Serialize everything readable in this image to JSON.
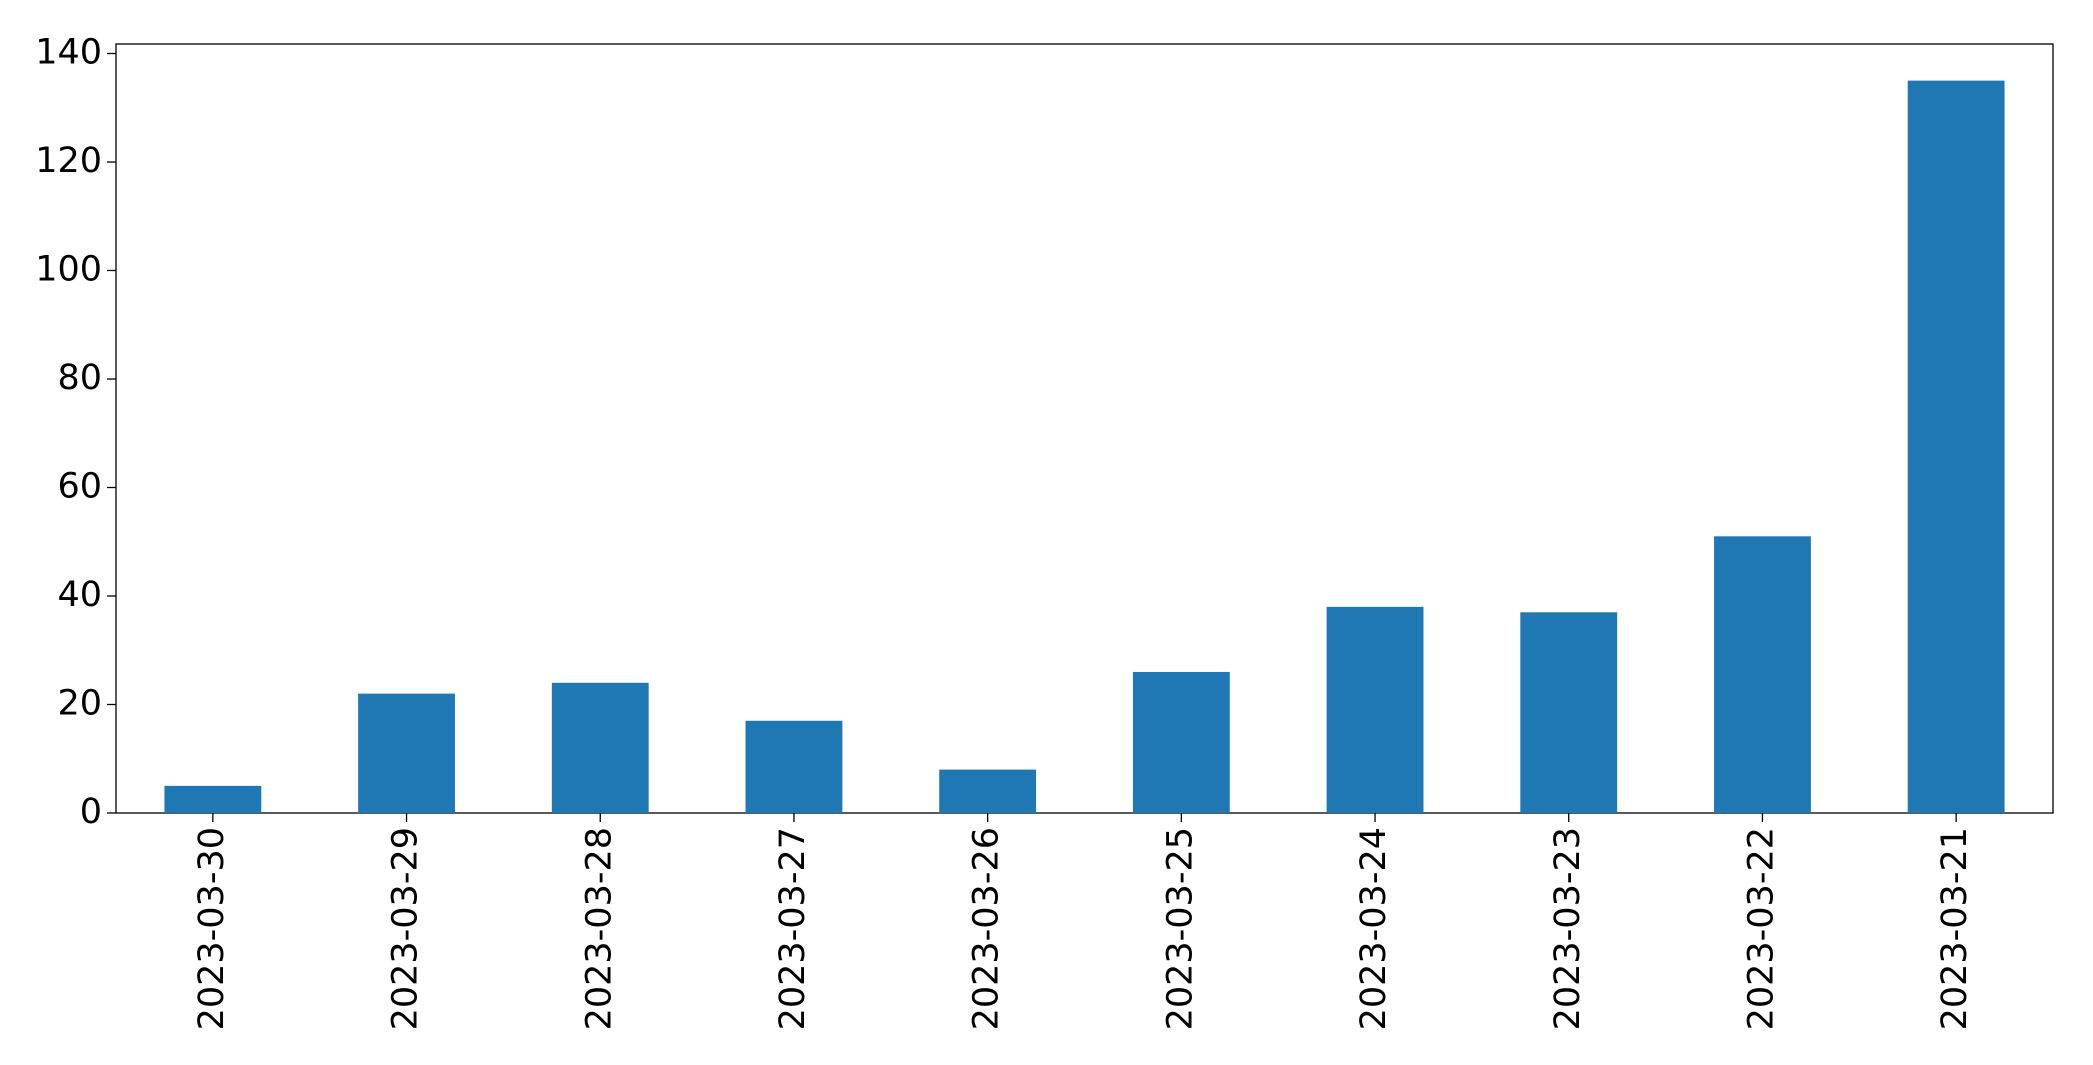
{
  "chart_data": {
    "type": "bar",
    "categories": [
      "2023-03-30",
      "2023-03-29",
      "2023-03-28",
      "2023-03-27",
      "2023-03-26",
      "2023-03-25",
      "2023-03-24",
      "2023-03-23",
      "2023-03-22",
      "2023-03-21"
    ],
    "values": [
      5,
      22,
      24,
      17,
      8,
      26,
      38,
      37,
      51,
      135
    ],
    "color": "#1f77b4",
    "ylim": [
      0,
      141.75
    ],
    "yticks": [
      0,
      20,
      40,
      60,
      80,
      100,
      120,
      140
    ],
    "grid": false
  }
}
